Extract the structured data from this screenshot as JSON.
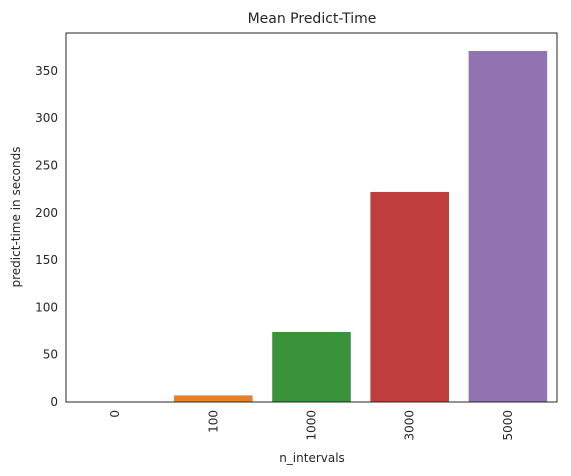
{
  "chart_data": {
    "type": "bar",
    "title": "Mean Predict-Time",
    "xlabel": "n_intervals",
    "ylabel": "predict-time in seconds",
    "categories": [
      "0",
      "100",
      "1000",
      "3000",
      "5000"
    ],
    "values": [
      0.5,
      7,
      74,
      222,
      371
    ],
    "colors": [
      "#1f77b4",
      "#e5812b",
      "#3a923a",
      "#c03d3e",
      "#9372b2"
    ],
    "ylim": [
      0,
      390
    ],
    "yticks": [
      0,
      50,
      100,
      150,
      200,
      250,
      300,
      350
    ],
    "grid": false,
    "legend": "none"
  }
}
